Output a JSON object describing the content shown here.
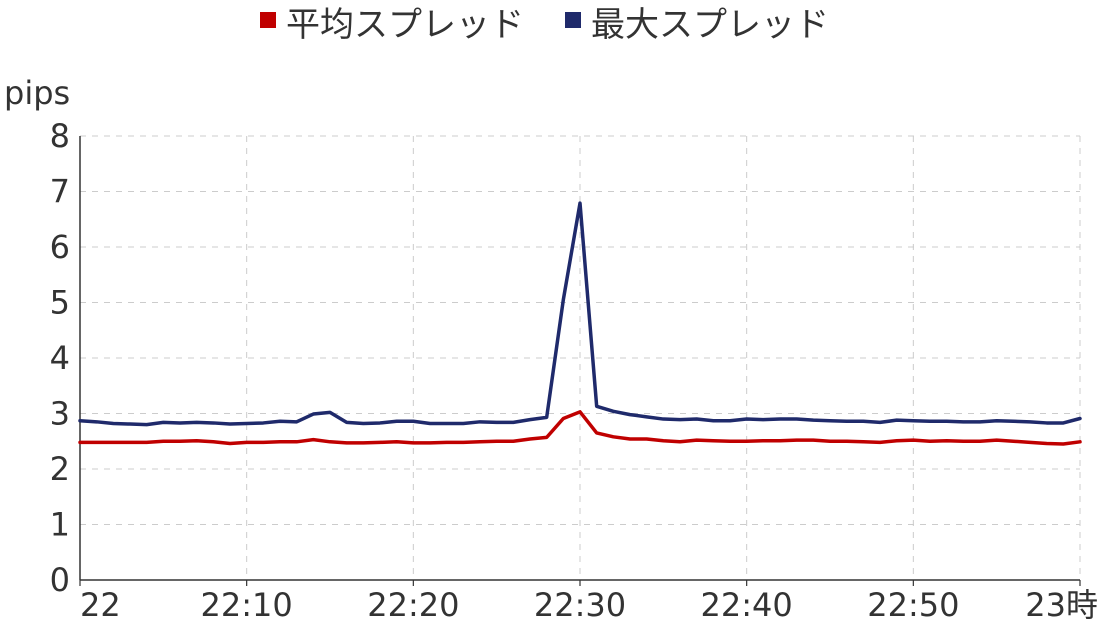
{
  "chart_data": {
    "type": "line",
    "title": "",
    "xlabel": "",
    "ylabel": "pips",
    "ylim": [
      0,
      8
    ],
    "yticks": [
      "0",
      "1",
      "2",
      "3",
      "4",
      "5",
      "6",
      "7",
      "8"
    ],
    "xlim": [
      0,
      60
    ],
    "xticks": [
      {
        "x": 0,
        "label": "22"
      },
      {
        "x": 10,
        "label": "22:10"
      },
      {
        "x": 20,
        "label": "22:20"
      },
      {
        "x": 30,
        "label": "22:30"
      },
      {
        "x": 40,
        "label": "22:40"
      },
      {
        "x": 50,
        "label": "22:50"
      },
      {
        "x": 60,
        "label": "23時"
      }
    ],
    "grid": true,
    "legend_position": "top-center",
    "series": [
      {
        "name": "平均スプレッド",
        "color": "#c00000",
        "x": [
          0,
          1,
          2,
          3,
          4,
          5,
          6,
          7,
          8,
          9,
          10,
          11,
          12,
          13,
          14,
          15,
          16,
          17,
          18,
          19,
          20,
          21,
          22,
          23,
          24,
          25,
          26,
          27,
          28,
          29,
          30,
          31,
          32,
          33,
          34,
          35,
          36,
          37,
          38,
          39,
          40,
          41,
          42,
          43,
          44,
          45,
          46,
          47,
          48,
          49,
          50,
          51,
          52,
          53,
          54,
          55,
          56,
          57,
          58,
          59,
          60
        ],
        "values": [
          2.48,
          2.48,
          2.48,
          2.48,
          2.48,
          2.5,
          2.5,
          2.51,
          2.49,
          2.46,
          2.48,
          2.48,
          2.49,
          2.49,
          2.53,
          2.49,
          2.47,
          2.47,
          2.48,
          2.49,
          2.47,
          2.47,
          2.48,
          2.48,
          2.49,
          2.5,
          2.5,
          2.54,
          2.57,
          2.91,
          3.03,
          2.65,
          2.58,
          2.54,
          2.54,
          2.51,
          2.49,
          2.52,
          2.51,
          2.5,
          2.5,
          2.51,
          2.51,
          2.52,
          2.52,
          2.5,
          2.5,
          2.49,
          2.48,
          2.51,
          2.52,
          2.5,
          2.51,
          2.5,
          2.5,
          2.52,
          2.5,
          2.48,
          2.46,
          2.45,
          2.49
        ]
      },
      {
        "name": "最大スプレッド",
        "color": "#1f2a6b",
        "x": [
          0,
          1,
          2,
          3,
          4,
          5,
          6,
          7,
          8,
          9,
          10,
          11,
          12,
          13,
          14,
          15,
          16,
          17,
          18,
          19,
          20,
          21,
          22,
          23,
          24,
          25,
          26,
          27,
          28,
          29,
          30,
          31,
          32,
          33,
          34,
          35,
          36,
          37,
          38,
          39,
          40,
          41,
          42,
          43,
          44,
          45,
          46,
          47,
          48,
          49,
          50,
          51,
          52,
          53,
          54,
          55,
          56,
          57,
          58,
          59,
          60
        ],
        "values": [
          2.87,
          2.85,
          2.82,
          2.81,
          2.8,
          2.84,
          2.83,
          2.84,
          2.83,
          2.81,
          2.82,
          2.83,
          2.86,
          2.85,
          2.99,
          3.02,
          2.84,
          2.82,
          2.83,
          2.86,
          2.86,
          2.82,
          2.82,
          2.82,
          2.85,
          2.84,
          2.84,
          2.89,
          2.93,
          5.05,
          6.79,
          3.13,
          3.04,
          2.98,
          2.94,
          2.9,
          2.89,
          2.9,
          2.87,
          2.87,
          2.9,
          2.89,
          2.9,
          2.9,
          2.88,
          2.87,
          2.86,
          2.86,
          2.84,
          2.88,
          2.87,
          2.86,
          2.86,
          2.85,
          2.85,
          2.87,
          2.86,
          2.85,
          2.83,
          2.83,
          2.91
        ]
      }
    ]
  }
}
